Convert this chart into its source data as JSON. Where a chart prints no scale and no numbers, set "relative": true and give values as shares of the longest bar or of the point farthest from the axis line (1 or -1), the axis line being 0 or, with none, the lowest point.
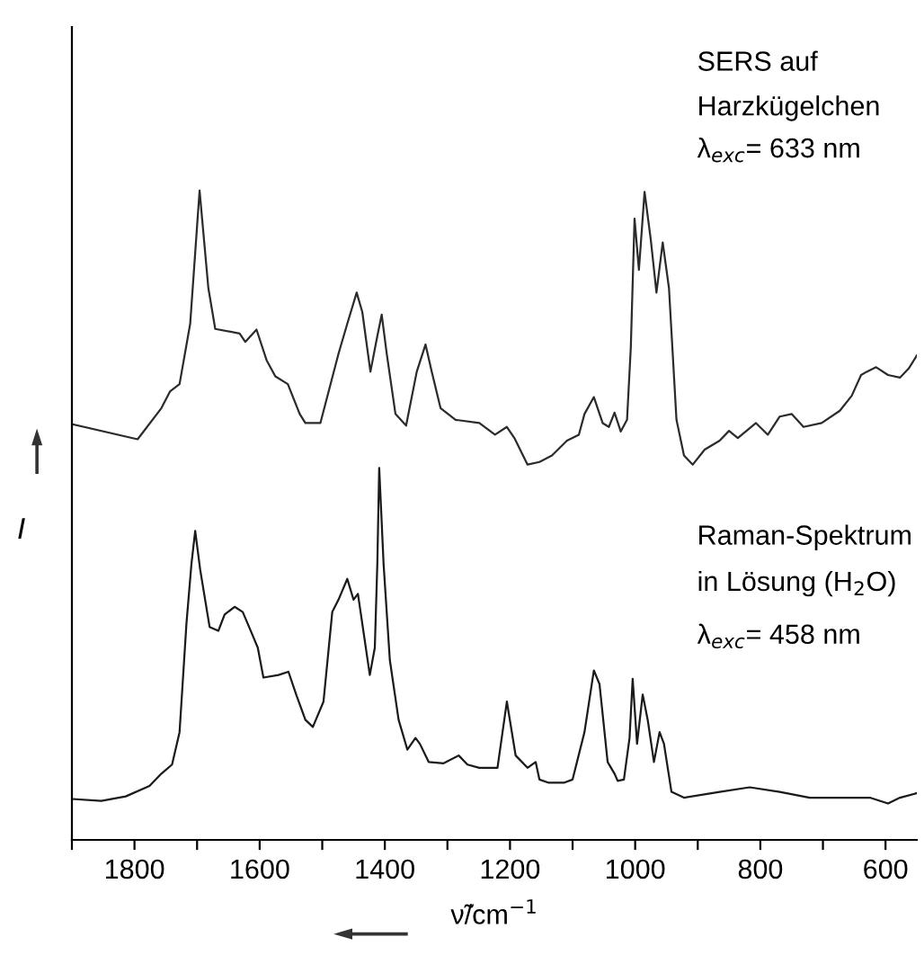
{
  "chart_data": {
    "type": "line",
    "relative": true,
    "xlabel": "ν̃/cm$^{−1}$",
    "ylabel": "I",
    "xlim": [
      1900,
      550
    ],
    "xticks": [
      {
        "value": 1900,
        "label": null
      },
      {
        "value": 1800,
        "label": "1800"
      },
      {
        "value": 1700,
        "label": null
      },
      {
        "value": 1600,
        "label": "1600"
      },
      {
        "value": 1500,
        "label": null
      },
      {
        "value": 1400,
        "label": "1400"
      },
      {
        "value": 1300,
        "label": null
      },
      {
        "value": 1200,
        "label": "1200"
      },
      {
        "value": 1100,
        "label": null
      },
      {
        "value": 1000,
        "label": "1000"
      },
      {
        "value": 900,
        "label": null
      },
      {
        "value": 800,
        "label": "800"
      },
      {
        "value": 700,
        "label": null
      },
      {
        "value": 600,
        "label": "600"
      }
    ],
    "tick_labels": "x",
    "grid": false,
    "marker": "none",
    "line_style": "solid",
    "annotations": [
      "SERS auf",
      "Harzkügelchen",
      "λ$_{exc}$= 633 nm",
      "Raman-Spektrum",
      "in Lösung (H$_{2}$O)",
      "λ$_{exc}$= 458 nm"
    ],
    "series": [
      {
        "color": "#2b2b2b",
        "x": [
          1899,
          1795,
          1757,
          1743,
          1728,
          1711,
          1696,
          1682,
          1671,
          1632,
          1623,
          1605,
          1589,
          1575,
          1555,
          1536,
          1527,
          1503,
          1474,
          1460,
          1445,
          1436,
          1423,
          1412,
          1405,
          1397,
          1383,
          1366,
          1349,
          1335,
          1325,
          1311,
          1287,
          1249,
          1224,
          1205,
          1193,
          1172,
          1153,
          1133,
          1109,
          1090,
          1081,
          1066,
          1052,
          1042,
          1033,
          1023,
          1013,
          1007,
          1001,
          994,
          985,
          975,
          966,
          956,
          946,
          934,
          922,
          908,
          889,
          865,
          850,
          836,
          807,
          788,
          769,
          750,
          731,
          702,
          673,
          654,
          639,
          630,
          615,
          596,
          577,
          563,
          550
        ],
        "values": [
          0.64,
          0.617,
          0.665,
          0.691,
          0.702,
          0.795,
          1.0,
          0.85,
          0.787,
          0.78,
          0.767,
          0.786,
          0.739,
          0.714,
          0.702,
          0.656,
          0.642,
          0.642,
          0.749,
          0.795,
          0.843,
          0.813,
          0.721,
          0.776,
          0.809,
          0.749,
          0.656,
          0.638,
          0.721,
          0.763,
          0.721,
          0.665,
          0.647,
          0.642,
          0.624,
          0.636,
          0.619,
          0.578,
          0.582,
          0.592,
          0.615,
          0.624,
          0.656,
          0.682,
          0.642,
          0.636,
          0.658,
          0.629,
          0.647,
          0.758,
          0.957,
          0.878,
          0.998,
          0.924,
          0.843,
          0.92,
          0.85,
          0.647,
          0.592,
          0.578,
          0.601,
          0.615,
          0.63,
          0.619,
          0.642,
          0.624,
          0.652,
          0.656,
          0.636,
          0.642,
          0.661,
          0.684,
          0.716,
          0.721,
          0.728,
          0.716,
          0.712,
          0.726,
          0.746
        ]
      },
      {
        "color": "#1a1a1a",
        "x": [
          1899,
          1853,
          1814,
          1776,
          1757,
          1740,
          1728,
          1717,
          1709,
          1703,
          1695,
          1680,
          1666,
          1656,
          1640,
          1627,
          1613,
          1603,
          1594,
          1570,
          1554,
          1541,
          1527,
          1515,
          1498,
          1484,
          1474,
          1460,
          1450,
          1443,
          1436,
          1424,
          1416,
          1412,
          1409,
          1402,
          1392,
          1378,
          1364,
          1351,
          1344,
          1330,
          1306,
          1282,
          1268,
          1249,
          1220,
          1205,
          1191,
          1172,
          1159,
          1153,
          1138,
          1114,
          1100,
          1081,
          1066,
          1057,
          1044,
          1033,
          1028,
          1018,
          1009,
          1004,
          997,
          988,
          980,
          970,
          961,
          954,
          942,
          922,
          865,
          817,
          769,
          721,
          673,
          625,
          596,
          577,
          550
        ],
        "values": [
          0.063,
          0.06,
          0.067,
          0.083,
          0.102,
          0.116,
          0.166,
          0.333,
          0.425,
          0.476,
          0.416,
          0.328,
          0.322,
          0.347,
          0.359,
          0.351,
          0.319,
          0.296,
          0.25,
          0.254,
          0.259,
          0.222,
          0.185,
          0.174,
          0.213,
          0.351,
          0.37,
          0.402,
          0.37,
          0.379,
          0.333,
          0.254,
          0.296,
          0.425,
          0.573,
          0.425,
          0.277,
          0.185,
          0.139,
          0.157,
          0.148,
          0.12,
          0.118,
          0.13,
          0.116,
          0.111,
          0.111,
          0.213,
          0.13,
          0.111,
          0.12,
          0.093,
          0.088,
          0.088,
          0.093,
          0.166,
          0.261,
          0.24,
          0.12,
          0.102,
          0.091,
          0.093,
          0.157,
          0.248,
          0.148,
          0.224,
          0.185,
          0.12,
          0.166,
          0.148,
          0.074,
          0.065,
          0.074,
          0.081,
          0.074,
          0.065,
          0.065,
          0.065,
          0.056,
          0.065,
          0.072
        ]
      }
    ]
  }
}
